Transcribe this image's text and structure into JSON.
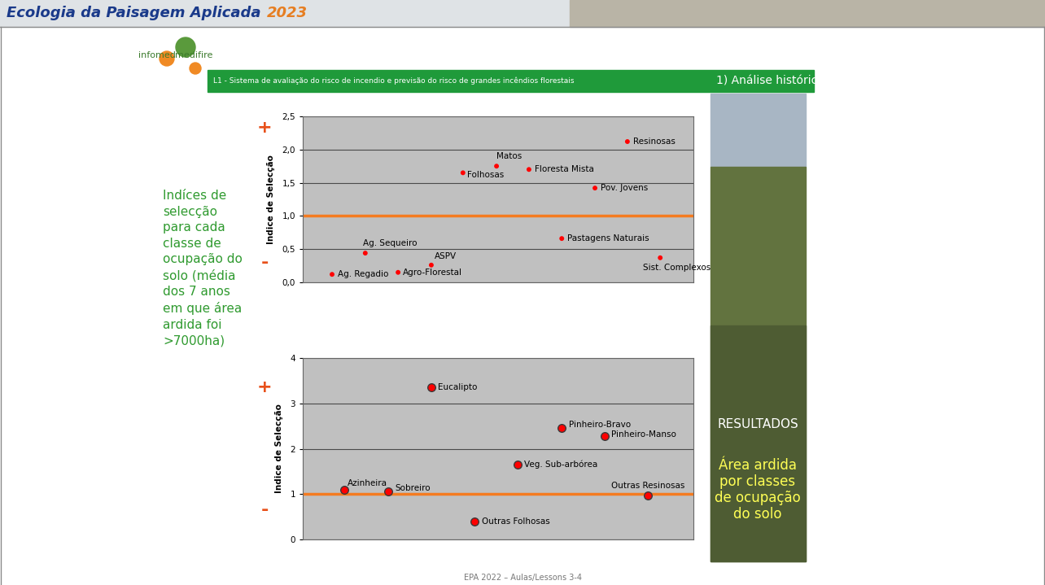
{
  "header": {
    "title": "Ecologia da Paisagem Aplicada",
    "year": "2023"
  },
  "logo": {
    "left": "infomed",
    "right": "medifire"
  },
  "banner": {
    "text": "L1 - Sistema de avaliação do risco de incendio e previsão do risco de grandes incêndios florestais",
    "section": "1) Análise histórica"
  },
  "side_note": "Indíces de\nselecção\npara cada\nclasse de\nocupação do\nsolo (média\ndos 7 anos\nem que área\nardida foi\n>7000ha)",
  "sidebar": {
    "heading": "RESULTADOS",
    "caption": "Área ardida\npor classes\nde ocupação\ndo solo"
  },
  "footer": "EPA 2022 – Aulas/Lessons 3-4",
  "chart_data": [
    {
      "type": "scatter",
      "y_label": "Indice de Selecção",
      "plus_label": "+",
      "minus_label": "-",
      "labels": [
        "Ag. Regadio",
        "Ag. Sequeiro",
        "Agro-Florestal",
        "ASPV",
        "Folhosas",
        "Matos",
        "Floresta Mista",
        "Pastagens Naturais",
        "Pov. Jovens",
        "Resinosas",
        "Sist. Complexos"
      ],
      "x": [
        0.75,
        1.6,
        2.44,
        3.29,
        4.1,
        4.96,
        5.79,
        6.63,
        7.48,
        8.31,
        9.15
      ],
      "values": [
        0.12,
        0.44,
        0.15,
        0.26,
        1.65,
        1.75,
        1.7,
        0.66,
        1.42,
        2.12,
        0.37
      ],
      "color": "#ff0000",
      "marker": "o",
      "xlim": [
        0,
        10
      ],
      "ylim": [
        0,
        2.5
      ],
      "yticks": [
        {
          "value": 0,
          "label": "0,0"
        },
        {
          "value": 0.5,
          "label": "0,5"
        },
        {
          "value": 1,
          "label": "1,0"
        },
        {
          "value": 1.5,
          "label": "1,5"
        },
        {
          "value": 2,
          "label": "2,0"
        },
        {
          "value": 2.5,
          "label": "2,5"
        }
      ],
      "grid": true,
      "tick_labels": "y",
      "reference_line": 1
    },
    {
      "type": "scatter",
      "y_label": "Indice de Selecção",
      "plus_label": "+",
      "minus_label": "-",
      "labels": [
        "Azinheira",
        "Sobreiro",
        "Eucalipto",
        "Outras Folhosas",
        "Veg. Sub-arbórea",
        "Pinheiro-Bravo",
        "Pinheiro-Manso",
        "Outras Resinosas"
      ],
      "x": [
        1.06,
        2.19,
        3.29,
        4.4,
        5.5,
        6.63,
        7.73,
        8.83
      ],
      "values": [
        1.1,
        1.05,
        3.35,
        0.4,
        1.65,
        2.45,
        2.27,
        0.97
      ],
      "color": "#ff0000",
      "marker": "o",
      "xlim": [
        0,
        10
      ],
      "ylim": [
        0,
        4
      ],
      "yticks": [
        0,
        1,
        2,
        3,
        4
      ],
      "grid": true,
      "tick_labels": "y",
      "reference_line": 1
    }
  ]
}
